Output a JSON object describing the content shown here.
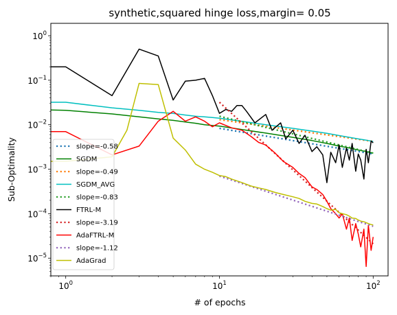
{
  "chart_data": {
    "type": "line",
    "title": "synthetic,squared hinge loss,margin= 0.05",
    "xlabel": "# of epochs",
    "ylabel": "Sub-Optimality",
    "xscale": "log",
    "yscale": "log",
    "xlim": [
      0.8,
      125
    ],
    "ylim": [
      4e-06,
      1.9
    ],
    "x_ticks": [
      {
        "value": 1,
        "base": "10",
        "exp": "0"
      },
      {
        "value": 10,
        "base": "10",
        "exp": "1"
      },
      {
        "value": 100,
        "base": "10",
        "exp": "2"
      }
    ],
    "y_ticks": [
      {
        "value": 1e-05,
        "base": "10",
        "exp": "−5"
      },
      {
        "value": 0.0001,
        "base": "10",
        "exp": "−4"
      },
      {
        "value": 0.001,
        "base": "10",
        "exp": "−3"
      },
      {
        "value": 0.01,
        "base": "10",
        "exp": "−2"
      },
      {
        "value": 0.1,
        "base": "10",
        "exp": "−1"
      },
      {
        "value": 1,
        "base": "10",
        "exp": "0"
      }
    ],
    "legend_position": "lower-left",
    "series": [
      {
        "name": "slope=-0.58",
        "color": "#1f77b4",
        "style": "dotted",
        "x": [
          10,
          100
        ],
        "y": [
          0.0083,
          0.0022
        ]
      },
      {
        "name": "SGDM",
        "color": "#008000",
        "style": "solid",
        "x": [
          0.8,
          1,
          2,
          3,
          4,
          5,
          6,
          7,
          8,
          9,
          10,
          15,
          20,
          30,
          40,
          50,
          60,
          70,
          80,
          90,
          100
        ],
        "y": [
          0.0215,
          0.021,
          0.0175,
          0.015,
          0.0135,
          0.0125,
          0.0115,
          0.0108,
          0.01,
          0.0096,
          0.0093,
          0.0075,
          0.0065,
          0.0052,
          0.0044,
          0.0038,
          0.0033,
          0.003,
          0.0027,
          0.0025,
          0.0023
        ]
      },
      {
        "name": "slope=-0.49",
        "color": "#ff7f0e",
        "style": "dotted",
        "x": [
          10,
          100
        ],
        "y": [
          0.013,
          0.0042
        ]
      },
      {
        "name": "SGDM_AVG",
        "color": "#00bfbf",
        "style": "solid",
        "x": [
          0.8,
          1,
          1.5,
          2,
          3,
          4,
          5,
          6,
          7,
          8,
          9,
          10,
          15,
          20,
          30,
          40,
          50,
          60,
          70,
          80,
          90,
          100
        ],
        "y": [
          0.032,
          0.032,
          0.027,
          0.024,
          0.021,
          0.019,
          0.018,
          0.0165,
          0.0155,
          0.015,
          0.0145,
          0.014,
          0.0115,
          0.01,
          0.0083,
          0.0072,
          0.0064,
          0.0057,
          0.0052,
          0.0048,
          0.0045,
          0.0042
        ]
      },
      {
        "name": "slope=-0.83",
        "color": "#2ca02c",
        "style": "dotted",
        "x": [
          10,
          100
        ],
        "y": [
          0.0155,
          0.0023
        ]
      },
      {
        "name": "FTRL-M",
        "color": "#000000",
        "style": "solid",
        "x": [
          0.8,
          1,
          2,
          3,
          4,
          5,
          6,
          7,
          8,
          9,
          10,
          11,
          12,
          13,
          14,
          15,
          17,
          20,
          22,
          25,
          27,
          30,
          33,
          36,
          40,
          43,
          47,
          50,
          53,
          57,
          60,
          63,
          67,
          70,
          73,
          77,
          80,
          83,
          87,
          90,
          93,
          97,
          100
        ],
        "y": [
          0.2,
          0.2,
          0.045,
          0.5,
          0.35,
          0.036,
          0.095,
          0.1,
          0.11,
          0.045,
          0.018,
          0.022,
          0.02,
          0.027,
          0.027,
          0.02,
          0.011,
          0.017,
          0.0075,
          0.011,
          0.0048,
          0.0075,
          0.0038,
          0.0058,
          0.0025,
          0.0032,
          0.0021,
          0.0005,
          0.0024,
          0.0014,
          0.0035,
          0.0011,
          0.003,
          0.0016,
          0.0038,
          0.0009,
          0.0022,
          0.0016,
          0.0006,
          0.0028,
          0.0014,
          0.0043,
          0.0039
        ]
      },
      {
        "name": "slope=-3.19",
        "color": "#d62728",
        "style": "dotted",
        "x": [
          10,
          100
        ],
        "y": [
          0.032,
          2.1e-05
        ]
      },
      {
        "name": "AdaFTRL-M",
        "color": "#ff0000",
        "style": "solid",
        "x": [
          0.8,
          1,
          2,
          3,
          4,
          5,
          6,
          7,
          8,
          9,
          10,
          12,
          14,
          16,
          18,
          20,
          23,
          26,
          30,
          33,
          36,
          40,
          43,
          47,
          50,
          53,
          57,
          60,
          63,
          67,
          70,
          73,
          77,
          80,
          83,
          87,
          90,
          93,
          97,
          100
        ],
        "y": [
          0.007,
          0.007,
          0.0021,
          0.0033,
          0.012,
          0.02,
          0.012,
          0.015,
          0.012,
          0.009,
          0.011,
          0.0085,
          0.0075,
          0.0055,
          0.004,
          0.0035,
          0.0023,
          0.0015,
          0.0011,
          0.0008,
          0.00065,
          0.0004,
          0.00035,
          0.00027,
          0.00019,
          0.00013,
          0.0001,
          8e-05,
          0.0001,
          4.5e-05,
          8e-05,
          2.5e-05,
          6e-05,
          3.5e-05,
          1.8e-05,
          4.5e-05,
          6.5e-06,
          5.5e-05,
          1.5e-05,
          3e-05
        ]
      },
      {
        "name": "slope=-1.12",
        "color": "#9467bd",
        "style": "dotted",
        "x": [
          10,
          100
        ],
        "y": [
          0.0007,
          5.2e-05
        ]
      },
      {
        "name": "AdaGrad",
        "color": "#bfbf00",
        "style": "solid",
        "x": [
          0.8,
          1,
          2,
          2.5,
          3,
          4,
          5,
          6,
          7,
          8,
          9,
          10,
          11,
          12,
          14,
          16,
          18,
          20,
          23,
          26,
          30,
          33,
          36,
          40,
          43,
          47,
          50,
          53,
          57,
          60,
          63,
          67,
          70,
          73,
          77,
          80,
          83,
          87,
          90,
          93,
          97,
          100
        ],
        "y": [
          0.0015,
          0.0015,
          0.0019,
          0.0075,
          0.085,
          0.08,
          0.005,
          0.0027,
          0.0013,
          0.001,
          0.00085,
          0.00072,
          0.00068,
          0.0006,
          0.0005,
          0.00042,
          0.00038,
          0.00035,
          0.0003,
          0.00027,
          0.00024,
          0.00022,
          0.00019,
          0.00017,
          0.000165,
          0.000145,
          0.00013,
          0.00012,
          0.000125,
          0.000105,
          0.0001,
          9.5e-05,
          8.8e-05,
          8e-05,
          7.8e-05,
          7.2e-05,
          6.8e-05,
          6.6e-05,
          6.3e-05,
          6e-05,
          5.7e-05,
          5.6e-05
        ]
      }
    ]
  }
}
